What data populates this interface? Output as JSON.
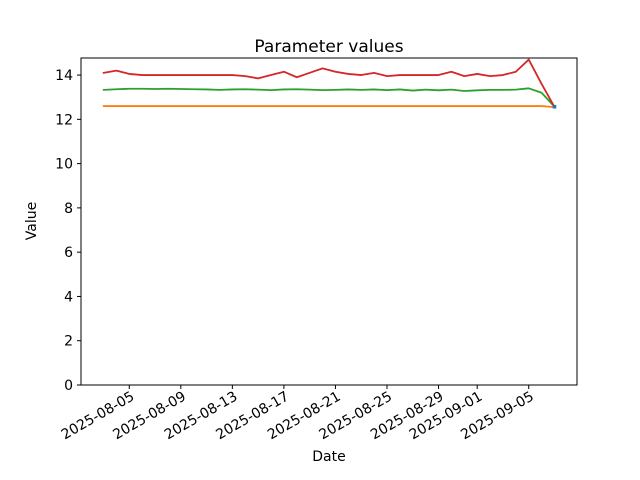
{
  "chart_data": {
    "type": "line",
    "title": "Parameter values",
    "xlabel": "Date",
    "ylabel": "Value",
    "grid": false,
    "legend": "none",
    "ylim": [
      0,
      14.77
    ],
    "yticks": [
      0,
      2,
      4,
      6,
      8,
      10,
      12,
      14
    ],
    "x_dates": [
      "2025-08-03",
      "2025-08-04",
      "2025-08-05",
      "2025-08-06",
      "2025-08-07",
      "2025-08-08",
      "2025-08-09",
      "2025-08-10",
      "2025-08-11",
      "2025-08-12",
      "2025-08-13",
      "2025-08-14",
      "2025-08-15",
      "2025-08-16",
      "2025-08-17",
      "2025-08-18",
      "2025-08-19",
      "2025-08-20",
      "2025-08-21",
      "2025-08-22",
      "2025-08-23",
      "2025-08-24",
      "2025-08-25",
      "2025-08-26",
      "2025-08-27",
      "2025-08-28",
      "2025-08-29",
      "2025-08-30",
      "2025-08-31",
      "2025-09-01",
      "2025-09-02",
      "2025-09-03",
      "2025-09-04",
      "2025-09-05",
      "2025-09-06",
      "2025-09-07"
    ],
    "xticks": [
      "2025-08-05",
      "2025-08-09",
      "2025-08-13",
      "2025-08-17",
      "2025-08-21",
      "2025-08-25",
      "2025-08-29",
      "2025-09-01",
      "2025-09-05"
    ],
    "xtick_rotation_deg": 30,
    "series": [
      {
        "name": "orange",
        "color": "#ff7f0e",
        "values": [
          12.6,
          12.6,
          12.6,
          12.6,
          12.6,
          12.6,
          12.6,
          12.6,
          12.6,
          12.6,
          12.6,
          12.6,
          12.6,
          12.6,
          12.6,
          12.6,
          12.6,
          12.6,
          12.6,
          12.6,
          12.6,
          12.6,
          12.6,
          12.6,
          12.6,
          12.6,
          12.6,
          12.6,
          12.6,
          12.6,
          12.6,
          12.6,
          12.6,
          12.6,
          12.6,
          12.55
        ]
      },
      {
        "name": "green",
        "color": "#2ca02c",
        "values": [
          13.33,
          13.36,
          13.38,
          13.38,
          13.37,
          13.38,
          13.37,
          13.36,
          13.35,
          13.33,
          13.35,
          13.36,
          13.34,
          13.32,
          13.35,
          13.36,
          13.34,
          13.32,
          13.33,
          13.35,
          13.33,
          13.35,
          13.32,
          13.35,
          13.3,
          13.34,
          13.31,
          13.34,
          13.28,
          13.31,
          13.33,
          13.33,
          13.34,
          13.4,
          13.2,
          12.57
        ]
      },
      {
        "name": "red",
        "color": "#d62728",
        "values": [
          14.1,
          14.2,
          14.05,
          14.0,
          14.0,
          14.0,
          14.0,
          14.0,
          14.0,
          14.0,
          14.0,
          13.95,
          13.85,
          14.0,
          14.15,
          13.9,
          14.1,
          14.3,
          14.15,
          14.05,
          14.0,
          14.1,
          13.95,
          14.0,
          14.0,
          14.0,
          14.0,
          14.15,
          13.95,
          14.05,
          13.95,
          14.0,
          14.15,
          14.7,
          13.6,
          12.56
        ]
      },
      {
        "name": "blue",
        "color": "#1f77b4",
        "marker_points": [
          {
            "date": "2025-09-07",
            "value": 12.57
          }
        ]
      }
    ]
  }
}
